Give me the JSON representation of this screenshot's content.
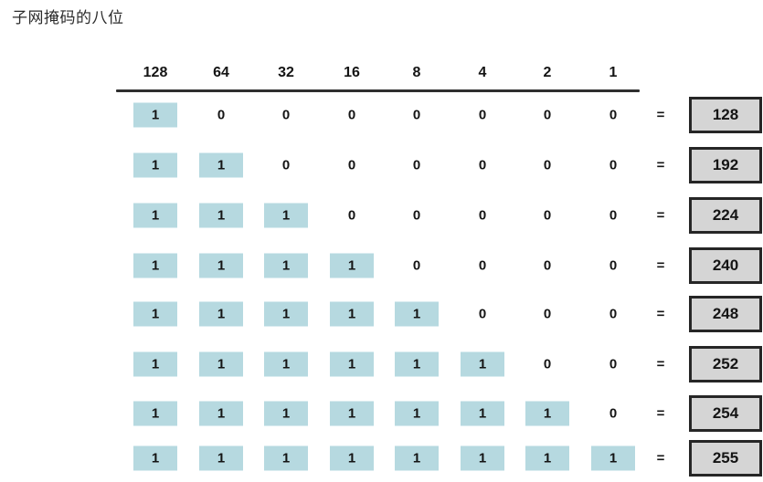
{
  "title": "子网掩码的八位",
  "table": {
    "bit_weights": [
      "128",
      "64",
      "32",
      "16",
      "8",
      "4",
      "2",
      "1"
    ],
    "equals_sign": "=",
    "rows": [
      {
        "bits": [
          "1",
          "0",
          "0",
          "0",
          "0",
          "0",
          "0",
          "0"
        ],
        "result": "128"
      },
      {
        "bits": [
          "1",
          "1",
          "0",
          "0",
          "0",
          "0",
          "0",
          "0"
        ],
        "result": "192"
      },
      {
        "bits": [
          "1",
          "1",
          "1",
          "0",
          "0",
          "0",
          "0",
          "0"
        ],
        "result": "224"
      },
      {
        "bits": [
          "1",
          "1",
          "1",
          "1",
          "0",
          "0",
          "0",
          "0"
        ],
        "result": "240"
      },
      {
        "bits": [
          "1",
          "1",
          "1",
          "1",
          "1",
          "0",
          "0",
          "0"
        ],
        "result": "248"
      },
      {
        "bits": [
          "1",
          "1",
          "1",
          "1",
          "1",
          "1",
          "0",
          "0"
        ],
        "result": "252"
      },
      {
        "bits": [
          "1",
          "1",
          "1",
          "1",
          "1",
          "1",
          "1",
          "0"
        ],
        "result": "254"
      },
      {
        "bits": [
          "1",
          "1",
          "1",
          "1",
          "1",
          "1",
          "1",
          "1"
        ],
        "result": "255"
      }
    ]
  },
  "colors": {
    "bit_on_bg": "#b6d9e0",
    "result_bg": "#d5d5d5",
    "result_border": "#262626",
    "rule": "#2f2f2f"
  }
}
